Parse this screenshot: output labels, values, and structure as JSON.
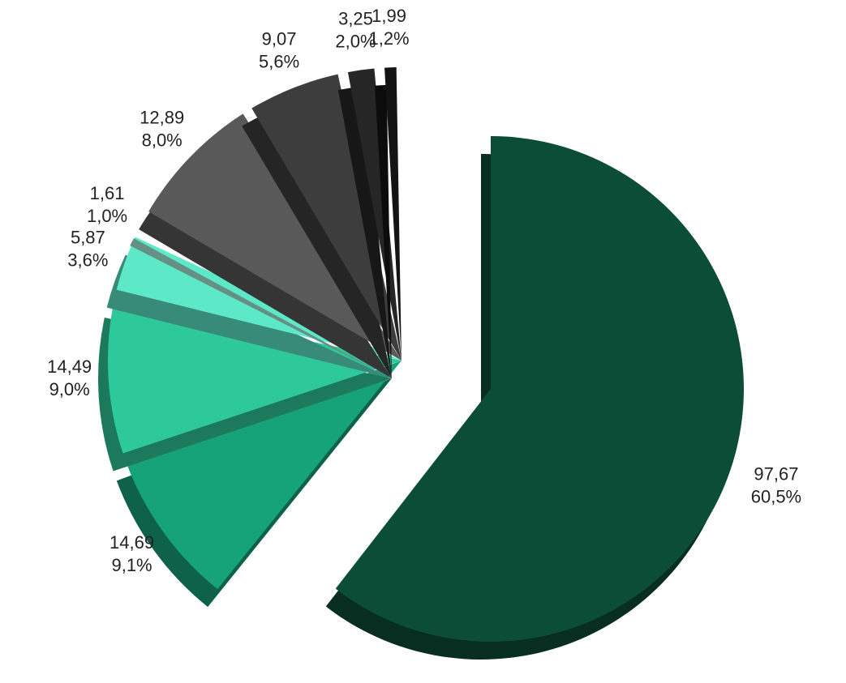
{
  "chart_data": {
    "type": "pie",
    "values": [
      97.67,
      14.69,
      14.49,
      5.87,
      1.61,
      12.89,
      9.07,
      3.25,
      1.99
    ],
    "value_labels": [
      "97,67",
      "14,69",
      "14,49",
      "5,87",
      "1,61",
      "12,89",
      "9,07",
      "3,25",
      "1,99"
    ],
    "percents": [
      60.5,
      9.1,
      9.0,
      3.6,
      1.0,
      8.0,
      5.6,
      2.0,
      1.2
    ],
    "percent_labels": [
      "60,5%",
      "9,1%",
      "9,0%",
      "3,6%",
      "1,0%",
      "8,0%",
      "5,6%",
      "2,0%",
      "1,2%"
    ],
    "colors": [
      "#0b4d36",
      "#17a37a",
      "#2ec99a",
      "#5de8c8",
      "#a8f0e0",
      "#595959",
      "#3d3d3d",
      "#262626",
      "#141414"
    ]
  }
}
